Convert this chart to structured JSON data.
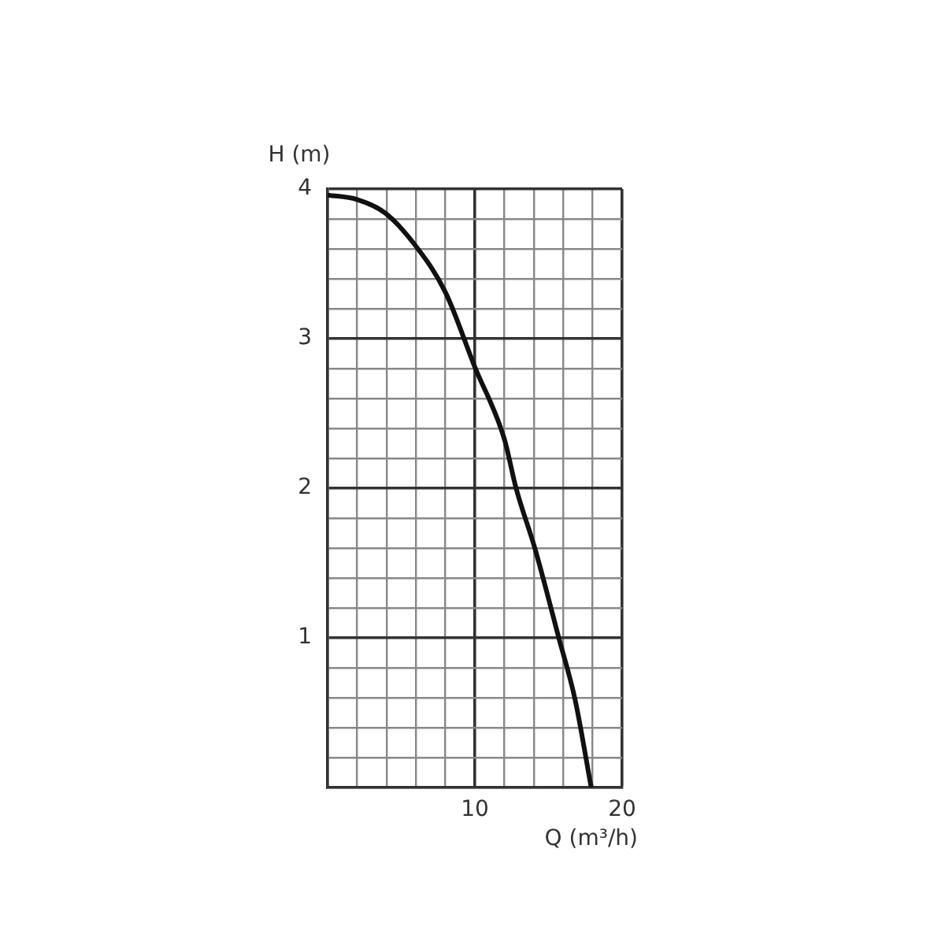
{
  "chart_data": {
    "type": "line",
    "xlabel": "Q (m³/h)",
    "ylabel": "H (m)",
    "xlim": [
      0,
      20
    ],
    "ylim": [
      0,
      4
    ],
    "xticks": [
      {
        "value": 0,
        "label": null
      },
      {
        "value": 2,
        "label": null
      },
      {
        "value": 4,
        "label": null
      },
      {
        "value": 6,
        "label": null
      },
      {
        "value": 8,
        "label": null
      },
      10,
      {
        "value": 12,
        "label": null
      },
      {
        "value": 14,
        "label": null
      },
      {
        "value": 16,
        "label": null
      },
      {
        "value": 18,
        "label": null
      },
      20
    ],
    "yticks": [
      {
        "value": 0,
        "label": null
      },
      {
        "value": 0.2,
        "label": null
      },
      {
        "value": 0.4,
        "label": null
      },
      {
        "value": 0.6,
        "label": null
      },
      {
        "value": 0.8,
        "label": null
      },
      1,
      {
        "value": 1.2,
        "label": null
      },
      {
        "value": 1.4,
        "label": null
      },
      {
        "value": 1.6,
        "label": null
      },
      {
        "value": 1.8,
        "label": null
      },
      2,
      {
        "value": 2.2,
        "label": null
      },
      {
        "value": 2.4,
        "label": null
      },
      {
        "value": 2.6,
        "label": null
      },
      {
        "value": 2.8,
        "label": null
      },
      3,
      {
        "value": 3.2,
        "label": null
      },
      {
        "value": 3.4,
        "label": null
      },
      {
        "value": 3.6,
        "label": null
      },
      {
        "value": 3.8,
        "label": null
      },
      4
    ],
    "grid": true,
    "legend": false,
    "marker": "none",
    "line_style": "solid",
    "series": [
      {
        "color": "#111111",
        "x": [
          0,
          2,
          3.9,
          5.9,
          8,
          10,
          12,
          12.8,
          14.1,
          15.7,
          16.8,
          17.9
        ],
        "values": [
          3.96,
          3.93,
          3.84,
          3.63,
          3.31,
          2.81,
          2.33,
          2.0,
          1.59,
          1.0,
          0.59,
          0
        ]
      }
    ]
  }
}
